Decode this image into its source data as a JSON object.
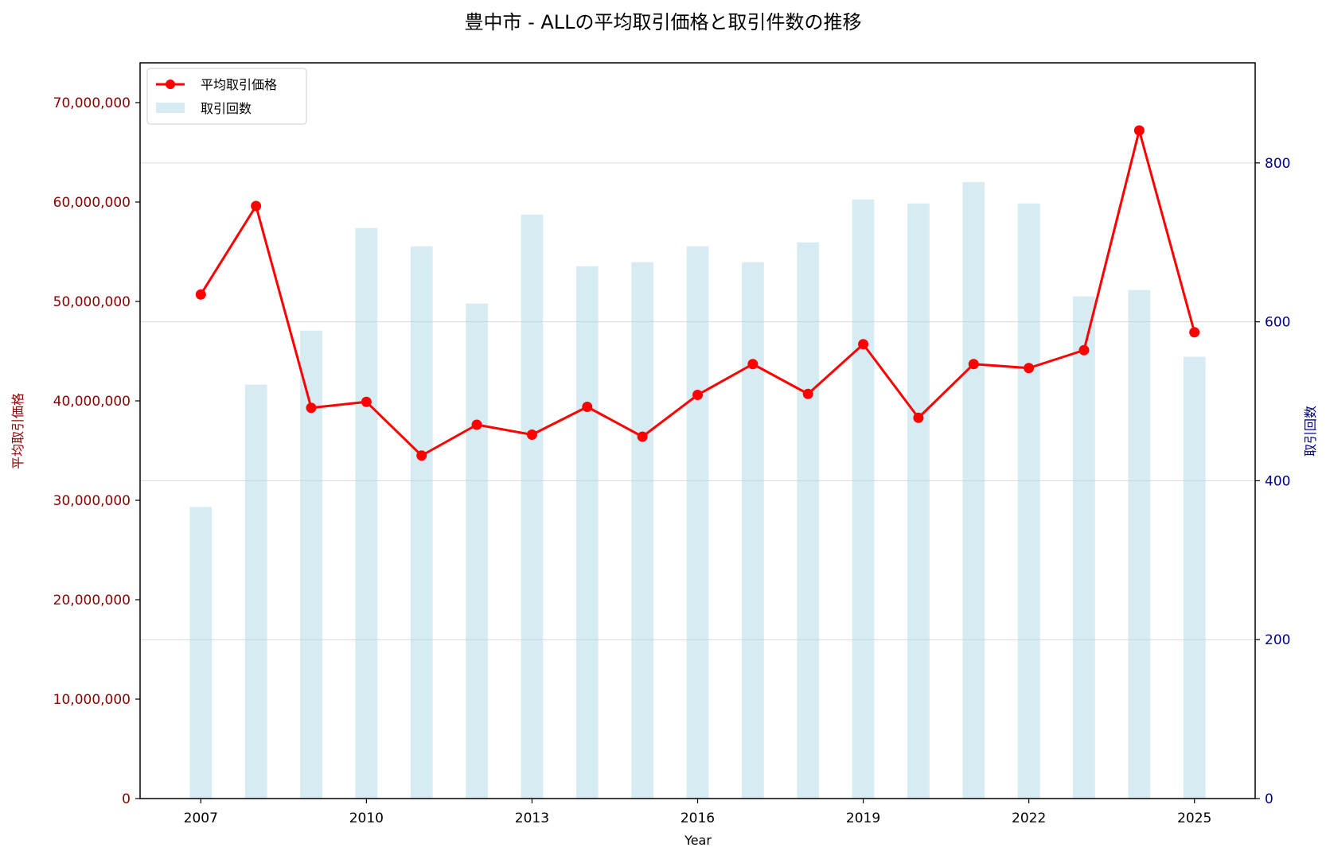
{
  "chart_data": {
    "type": "bar+line",
    "title": "豊中市 - ALLの平均取引価格と取引件数の推移",
    "xlabel": "Year",
    "ylabel_left": "平均取引価格",
    "ylabel_right": "取引回数",
    "x": [
      2007,
      2008,
      2009,
      2010,
      2011,
      2012,
      2013,
      2014,
      2015,
      2016,
      2017,
      2018,
      2019,
      2020,
      2021,
      2022,
      2023,
      2024,
      2025
    ],
    "x_ticks": [
      "2007",
      "2010",
      "2013",
      "2016",
      "2019",
      "2022",
      "2025"
    ],
    "xlim": [
      2005.9,
      2026.1
    ],
    "ylim_left": [
      0,
      74000000
    ],
    "ylim_right": [
      0,
      926
    ],
    "y_ticks_left": [
      "0",
      "10,000,000",
      "20,000,000",
      "30,000,000",
      "40,000,000",
      "50,000,000",
      "60,000,000",
      "70,000,000"
    ],
    "y_ticks_right": [
      "0",
      "200",
      "400",
      "600",
      "800"
    ],
    "grid": "right-axis-horizontal",
    "legend": {
      "position": "top-left"
    },
    "series": [
      {
        "name": "平均取引価格",
        "kind": "line",
        "axis": "left",
        "color": "#ff0000",
        "values": [
          50700000,
          59600000,
          39300000,
          39900000,
          34500000,
          37600000,
          36600000,
          39400000,
          36400000,
          40600000,
          43700000,
          40700000,
          45700000,
          38300000,
          43700000,
          43300000,
          45100000,
          67200000,
          46900000
        ]
      },
      {
        "name": "取引回数",
        "kind": "bar",
        "axis": "right",
        "color": "#add8e6",
        "values": [
          367,
          521,
          589,
          718,
          695,
          623,
          735,
          670,
          675,
          695,
          675,
          700,
          754,
          749,
          776,
          749,
          632,
          640,
          556
        ]
      }
    ]
  }
}
